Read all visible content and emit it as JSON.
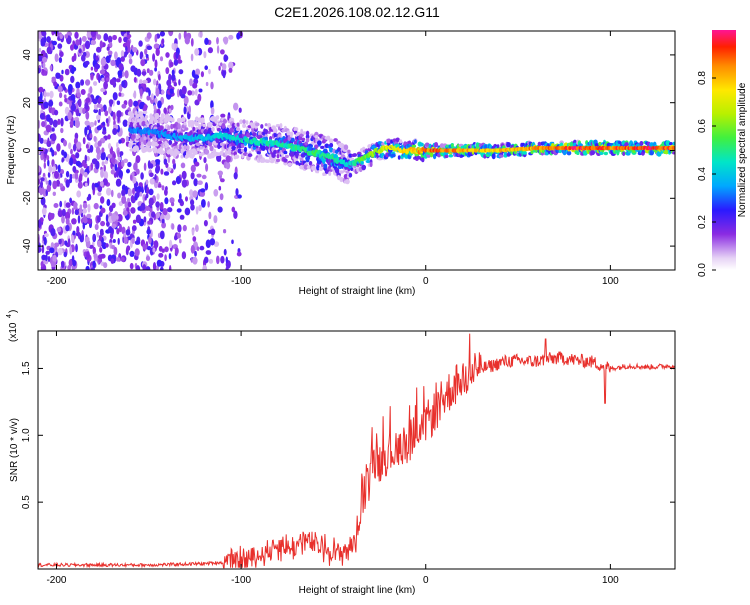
{
  "title": "C2E1.2026.108.02.12.G11",
  "colors": {
    "snr_line": "#e8302c",
    "frame": "#000000"
  },
  "chart_data": [
    {
      "type": "heatmap",
      "name": "spectrogram",
      "xlabel": "Height of straight line (km)",
      "ylabel": "Frequency (Hz)",
      "xlim": [
        -210,
        135
      ],
      "ylim": [
        -50,
        50
      ],
      "xticks": [
        -200,
        -100,
        0,
        100
      ],
      "xtick_labels": [
        "-200",
        "-100",
        "0",
        "100"
      ],
      "yticks": [
        -40,
        -20,
        0,
        20,
        40
      ],
      "ytick_labels": [
        "-40",
        "-20",
        "0",
        "20",
        "40"
      ],
      "colorbar": {
        "label": "Normalized spectral amplitude",
        "range": [
          0,
          1
        ],
        "ticks": [
          0,
          0.2,
          0.4,
          0.6,
          0.8
        ],
        "tick_labels": [
          "0.0",
          "0.2",
          "0.4",
          "0.6",
          "0.8"
        ]
      },
      "ridge": {
        "x": [
          -150,
          -130,
          -110,
          -95,
          -80,
          -65,
          -50,
          -42,
          -35,
          -25,
          -18,
          -10,
          0,
          20,
          40,
          60,
          80,
          100,
          120,
          135
        ],
        "freq_hz": [
          8,
          5,
          6,
          4,
          3,
          0,
          -3,
          -6,
          -4,
          0,
          1,
          0,
          0,
          0,
          0,
          1,
          1,
          1,
          1,
          1
        ],
        "amplitude": [
          0.35,
          0.4,
          0.45,
          0.5,
          0.5,
          0.55,
          0.55,
          0.45,
          0.6,
          0.7,
          0.8,
          0.8,
          0.95,
          0.9,
          0.85,
          0.9,
          1.0,
          0.95,
          1.0,
          0.95
        ]
      }
    },
    {
      "type": "line",
      "name": "snr",
      "xlabel": "Height of straight line (km)",
      "ylabel": "SNR (10 * v/v)",
      "scale_label": "(x10",
      "scale_exp": "4",
      "xlim": [
        -210,
        135
      ],
      "ylim": [
        0,
        1.78
      ],
      "xticks": [
        -200,
        -100,
        0,
        100
      ],
      "xtick_labels": [
        "-200",
        "-100",
        "0",
        "100"
      ],
      "yticks": [
        0.5,
        1.0,
        1.5
      ],
      "ytick_labels": [
        "0.5",
        "1.0",
        "1.5"
      ],
      "series": [
        {
          "name": "SNR",
          "x": [
            -210,
            -180,
            -150,
            -120,
            -100,
            -90,
            -80,
            -72,
            -66,
            -60,
            -54,
            -48,
            -42,
            -38,
            -34,
            -32,
            -30,
            -26,
            -22,
            -18,
            -14,
            -10,
            -6,
            -2,
            2,
            6,
            10,
            14,
            18,
            22,
            26,
            30,
            36,
            42,
            50,
            58,
            66,
            74,
            82,
            90,
            96,
            100,
            110,
            120,
            135
          ],
          "values": [
            0.03,
            0.03,
            0.03,
            0.04,
            0.06,
            0.1,
            0.18,
            0.15,
            0.22,
            0.18,
            0.15,
            0.12,
            0.15,
            0.2,
            0.55,
            0.6,
            0.7,
            0.78,
            0.85,
            0.88,
            0.92,
            0.95,
            1.0,
            1.05,
            1.12,
            1.2,
            1.28,
            1.35,
            1.4,
            1.45,
            1.48,
            1.5,
            1.52,
            1.55,
            1.56,
            1.55,
            1.57,
            1.58,
            1.56,
            1.55,
            1.52,
            1.5,
            1.52,
            1.51,
            1.52
          ]
        }
      ]
    }
  ]
}
